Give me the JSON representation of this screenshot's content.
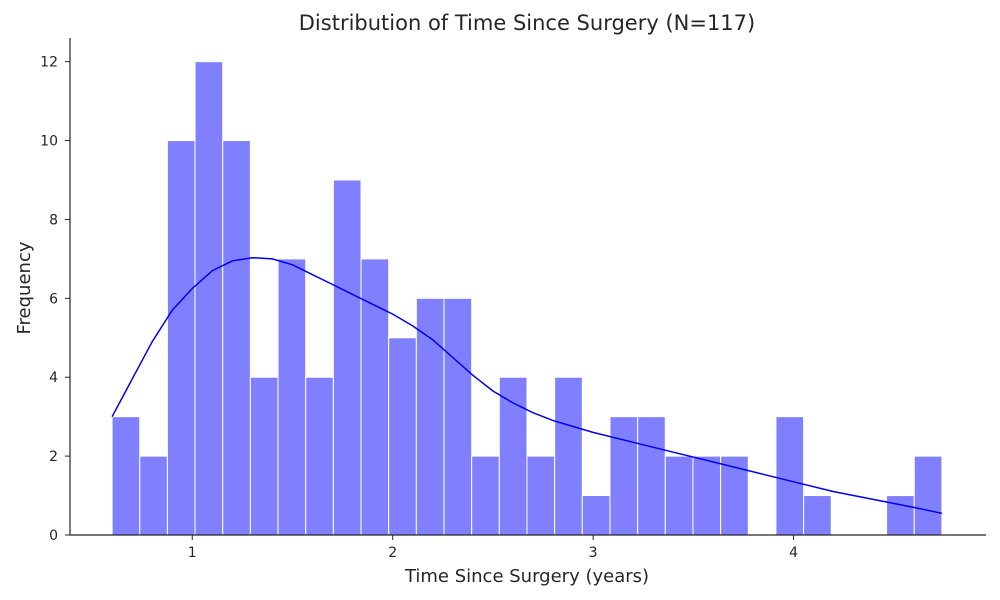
{
  "chart_data": {
    "type": "bar",
    "subtype": "histogram-with-kde",
    "title": "Distribution of Time Since Surgery (N=117)",
    "xlabel": "Time Since Surgery (years)",
    "ylabel": "Frequency",
    "xlim": [
      0.39,
      4.96
    ],
    "ylim": [
      0,
      12.6
    ],
    "xticks": [
      1,
      2,
      3,
      4
    ],
    "yticks": [
      0,
      2,
      4,
      6,
      8,
      10,
      12
    ],
    "grid": false,
    "bin_start": 0.6,
    "bin_width": 0.138,
    "values": [
      3,
      2,
      10,
      12,
      10,
      4,
      7,
      4,
      9,
      7,
      5,
      6,
      6,
      2,
      4,
      2,
      4,
      1,
      3,
      3,
      2,
      2,
      2,
      0,
      3,
      1,
      0,
      0,
      1,
      2
    ],
    "kde": {
      "x": [
        0.6,
        0.7,
        0.8,
        0.9,
        1.0,
        1.1,
        1.2,
        1.3,
        1.4,
        1.5,
        1.6,
        1.7,
        1.8,
        1.9,
        2.0,
        2.1,
        2.2,
        2.3,
        2.4,
        2.5,
        2.6,
        2.7,
        2.8,
        2.9,
        3.0,
        3.2,
        3.4,
        3.6,
        3.8,
        4.0,
        4.2,
        4.4,
        4.6,
        4.74
      ],
      "y": [
        3.0,
        3.95,
        4.9,
        5.7,
        6.25,
        6.7,
        6.95,
        7.03,
        7.0,
        6.85,
        6.6,
        6.35,
        6.1,
        5.85,
        5.6,
        5.3,
        4.95,
        4.5,
        4.05,
        3.65,
        3.35,
        3.1,
        2.9,
        2.75,
        2.6,
        2.35,
        2.1,
        1.85,
        1.6,
        1.35,
        1.1,
        0.9,
        0.7,
        0.55
      ]
    },
    "colors": {
      "bars": "#8080ff",
      "kde": "#0000ee",
      "axis": "#262626"
    }
  }
}
